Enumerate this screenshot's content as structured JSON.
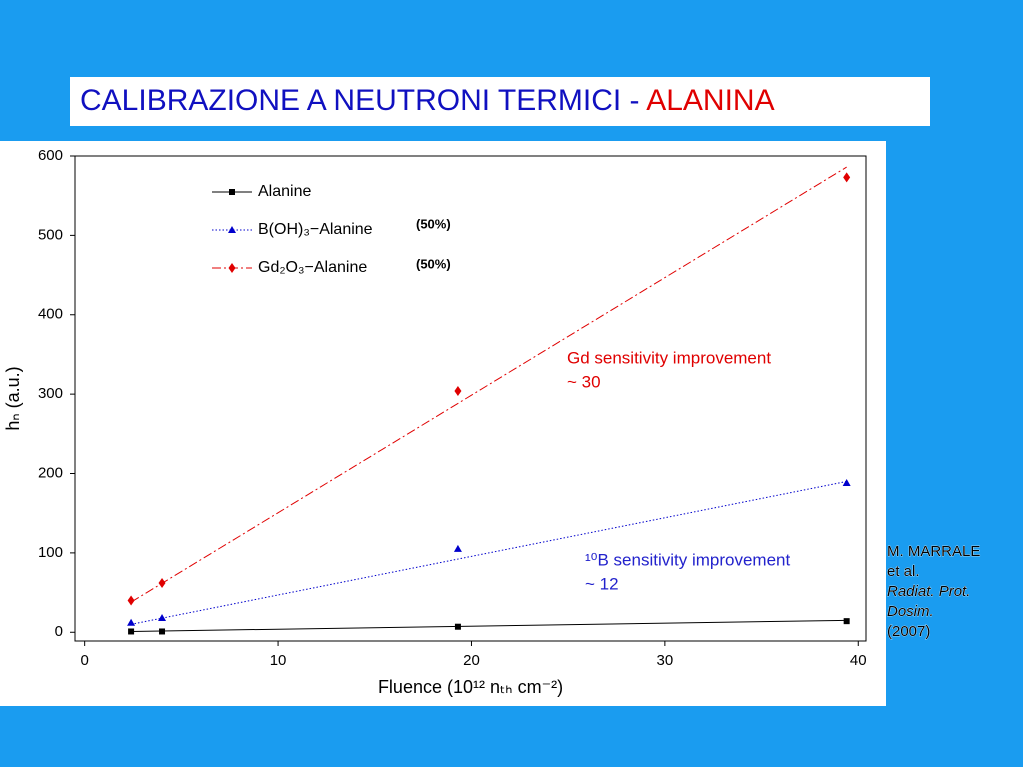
{
  "title_main": "CALIBRAZIONE A NEUTRONI TERMICI - ",
  "title_highlight": "ALANINA",
  "citation": [
    "M. MARRALE",
    "et al.",
    "Radiat. Prot.",
    "Dosim.",
    "(2007)"
  ],
  "chart_data": {
    "type": "scatter",
    "x_label": "Fluence (10¹² nₜₕ cm⁻²)",
    "y_label": "hₙ (a.u.)",
    "x": [
      2.4,
      4,
      19.3,
      39.4
    ],
    "series": [
      {
        "name": "Alanine",
        "color": "#000000",
        "marker": "square",
        "linestyle": "solid",
        "values": [
          1,
          1,
          7,
          14
        ],
        "fit": [
          1,
          15
        ]
      },
      {
        "name": "B(OH)₃−Alanine",
        "color": "#0000cc",
        "marker": "triangle",
        "linestyle": "dotted",
        "values": [
          12,
          18,
          105,
          188
        ],
        "fit": [
          10,
          190
        ]
      },
      {
        "name": "Gd₂O₃−Alanine",
        "color": "#e00000",
        "marker": "diamond",
        "linestyle": "dashdot",
        "values": [
          40,
          62,
          304,
          573
        ],
        "fit": [
          38,
          586
        ]
      }
    ],
    "legend_notes": [
      "(50%)",
      "(50%)"
    ],
    "annotations": [
      {
        "lines": [
          "Gd sensitivity improvement",
          "~ 30"
        ],
        "color": "#e00000"
      },
      {
        "lines": [
          "¹⁰B sensitivity improvement",
          "~ 12"
        ],
        "color": "#2222cc"
      }
    ],
    "xlim": [
      -0.5,
      40.4
    ],
    "ylim": [
      -11,
      600
    ],
    "xticks": [
      0,
      10,
      20,
      30,
      40
    ],
    "yticks": [
      0,
      100,
      200,
      300,
      400,
      500,
      600
    ]
  }
}
